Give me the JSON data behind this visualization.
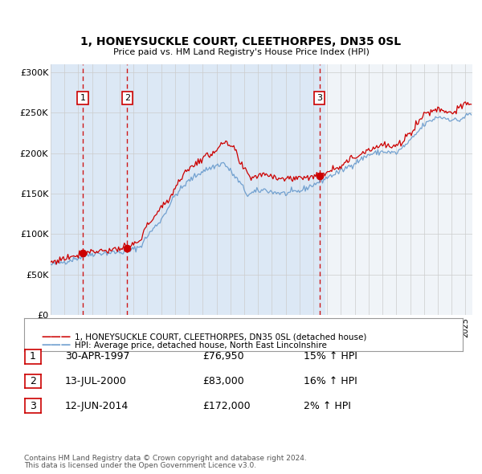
{
  "title": "1, HONEYSUCKLE COURT, CLEETHORPES, DN35 0SL",
  "subtitle": "Price paid vs. HM Land Registry's House Price Index (HPI)",
  "legend_line1": "1, HONEYSUCKLE COURT, CLEETHORPES, DN35 0SL (detached house)",
  "legend_line2": "HPI: Average price, detached house, North East Lincolnshire",
  "footer1": "Contains HM Land Registry data © Crown copyright and database right 2024.",
  "footer2": "This data is licensed under the Open Government Licence v3.0.",
  "sales": [
    {
      "label": "1",
      "date_decimal": 1997.33,
      "price": 76950
    },
    {
      "label": "2",
      "date_decimal": 2000.54,
      "price": 83000
    },
    {
      "label": "3",
      "date_decimal": 2014.45,
      "price": 172000
    }
  ],
  "table_rows": [
    [
      "1",
      "30-APR-1997",
      "£76,950",
      "15% ↑ HPI"
    ],
    [
      "2",
      "13-JUL-2000",
      "£83,000",
      "16% ↑ HPI"
    ],
    [
      "3",
      "12-JUN-2014",
      "£172,000",
      "2% ↑ HPI"
    ]
  ],
  "sale_box_color": "#cc0000",
  "sale_line_color": "#cc0000",
  "hpi_line_color": "#6699cc",
  "price_line_color": "#cc0000",
  "dot_color": "#cc0000",
  "bg_color": "#ffffff",
  "plot_bg_color": "#f0f4f8",
  "shade_color": "#dce8f5",
  "grid_color": "#cccccc",
  "ylim": [
    0,
    310000
  ],
  "yticks": [
    0,
    50000,
    100000,
    150000,
    200000,
    250000,
    300000
  ],
  "ytick_labels": [
    "£0",
    "£50K",
    "£100K",
    "£150K",
    "£200K",
    "£250K",
    "£300K"
  ],
  "xstart": 1995.0,
  "xend": 2025.5,
  "hpi_checkpoints_x": [
    1995.0,
    1996.0,
    1997.25,
    1998.0,
    1999.0,
    2000.5,
    2001.5,
    2002.0,
    2003.0,
    2004.0,
    2005.0,
    2006.0,
    2007.5,
    2008.0,
    2008.75,
    2009.25,
    2009.75,
    2010.5,
    2011.0,
    2012.0,
    2013.0,
    2014.5,
    2015.0,
    2016.0,
    2017.0,
    2018.0,
    2019.0,
    2020.0,
    2021.0,
    2022.0,
    2023.0,
    2024.5,
    2025.25
  ],
  "hpi_checkpoints_y": [
    62000,
    66000,
    72000,
    76000,
    77000,
    78000,
    85000,
    98000,
    118000,
    148000,
    166000,
    178000,
    188000,
    178000,
    162000,
    148000,
    152000,
    155000,
    152000,
    150000,
    153000,
    165000,
    170000,
    178000,
    188000,
    198000,
    202000,
    200000,
    215000,
    235000,
    245000,
    240000,
    248000
  ],
  "pp_checkpoints_x": [
    1995.0,
    1997.33,
    1998.0,
    1999.0,
    2000.54,
    2001.5,
    2002.0,
    2003.5,
    2004.5,
    2005.5,
    2006.5,
    2007.5,
    2008.25,
    2008.75,
    2009.5,
    2010.5,
    2011.0,
    2012.0,
    2013.0,
    2014.45,
    2015.0,
    2016.0,
    2017.0,
    2018.0,
    2019.0,
    2020.0,
    2021.0,
    2022.0,
    2023.0,
    2024.0,
    2025.25
  ],
  "pp_checkpoints_y": [
    65000,
    77000,
    79000,
    80000,
    83000,
    92000,
    112000,
    142000,
    172000,
    188000,
    198000,
    212000,
    207000,
    185000,
    170000,
    175000,
    172000,
    168000,
    170000,
    172000,
    178000,
    185000,
    195000,
    205000,
    210000,
    207000,
    225000,
    248000,
    255000,
    250000,
    262000
  ]
}
